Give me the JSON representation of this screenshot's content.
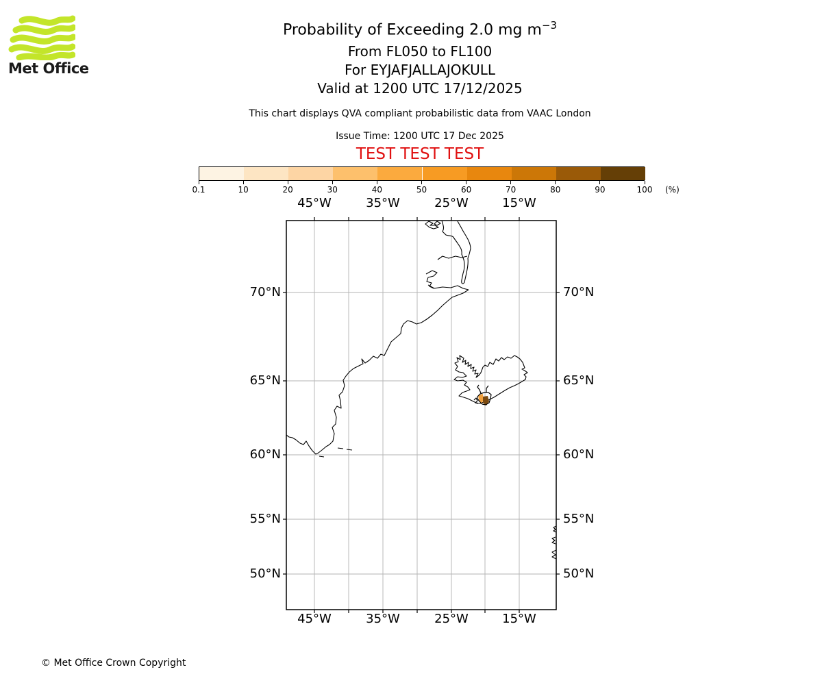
{
  "logo": {
    "name": "Met Office",
    "wave_color": "#c3e52a"
  },
  "header": {
    "title_main": "Probability of Exceeding 2.0 mg m",
    "title_exponent": "−3",
    "line_levels": "From FL050 to FL100",
    "line_volcano": "For EYJAFJALLAJOKULL",
    "line_valid": "Valid at 1200 UTC 17/12/2025",
    "description": "This chart displays QVA compliant probabilistic data from VAAC London",
    "issue_time": "Issue Time: 1200 UTC 17 Dec 2025",
    "test_banner": "TEST TEST TEST",
    "test_color": "#e01111"
  },
  "colorbar": {
    "tick_labels": [
      "0.1",
      "10",
      "20",
      "30",
      "40",
      "50",
      "60",
      "70",
      "80",
      "90",
      "100"
    ],
    "unit": "(%)",
    "colors": [
      "#fdf3e3",
      "#fde5c3",
      "#fdd5a4",
      "#fdc06c",
      "#fbaa3e",
      "#f79b23",
      "#e8870e",
      "#cc7707",
      "#9a5a08",
      "#653f06"
    ]
  },
  "map": {
    "lon_labels": [
      "45°W",
      "35°W",
      "25°W",
      "15°W"
    ],
    "lat_labels": [
      "70°N",
      "65°N",
      "60°N",
      "55°N",
      "50°N"
    ]
  },
  "footer": {
    "copyright": "© Met Office Crown Copyright"
  },
  "chart_data": {
    "type": "map",
    "title": "Probability of Exceeding 2.0 mg m^-3",
    "flight_levels": "FL050 to FL100",
    "volcano": "EYJAFJALLAJOKULL",
    "valid_time": "1200 UTC 17/12/2025",
    "issue_time": "1200 UTC 17 Dec 2025",
    "source": "VAAC London QVA compliant probabilistic data",
    "legend_percent_levels": [
      0.1,
      10,
      20,
      30,
      40,
      50,
      60,
      70,
      80,
      90,
      100
    ],
    "legend_colors": [
      "#fdf3e3",
      "#fde5c3",
      "#fdd5a4",
      "#fdc06c",
      "#fbaa3e",
      "#f79b23",
      "#e8870e",
      "#cc7707",
      "#9a5a08",
      "#653f06"
    ],
    "projection": "mercator",
    "lon_gridlines_deg_west": [
      45,
      40,
      35,
      30,
      25,
      20,
      15
    ],
    "lat_gridlines_deg_north": [
      70,
      65,
      60,
      55,
      50
    ],
    "visible_land": [
      "Greenland east and south coast",
      "Iceland",
      "west coast fragments of Ireland at right edge"
    ],
    "hazard_area": "small high-probability contour patch over southern Iceland near Eyjafjallajokull (orange ~40% and dark brown ~90-100%)"
  }
}
